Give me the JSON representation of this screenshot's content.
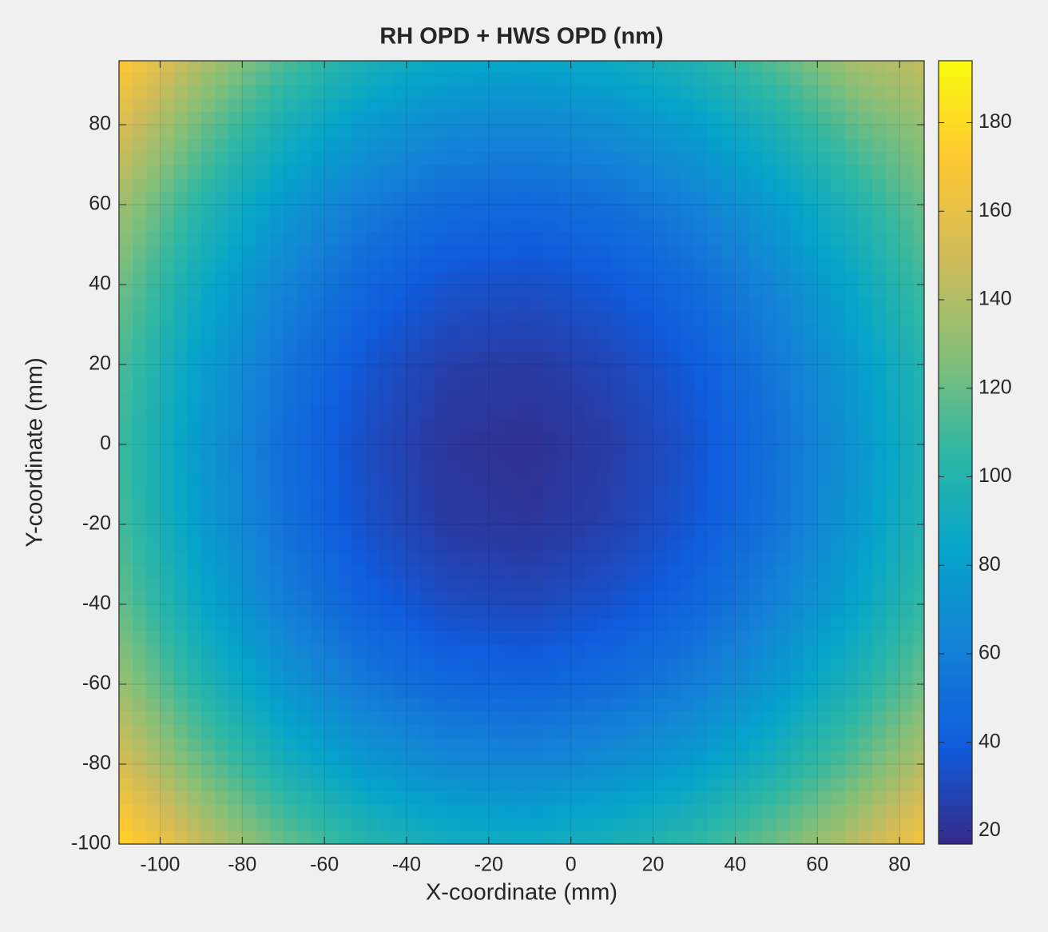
{
  "chart_data": {
    "type": "contour",
    "title": "RH OPD + HWS OPD (nm)",
    "x_label": "X-coordinate (mm)",
    "y_label": "Y-coordinate (mm)",
    "x": [
      -110,
      -90,
      -70,
      -50,
      -30,
      -10,
      10,
      30,
      50,
      70,
      90
    ],
    "y": [
      -100,
      -80,
      -60,
      -40,
      -20,
      0,
      20,
      40,
      60,
      80,
      100
    ],
    "z": [
      [
        180,
        146,
        120,
        102,
        92,
        90,
        95,
        105,
        122,
        144,
        173
      ],
      [
        154,
        120,
        94,
        76,
        66,
        64,
        69,
        79,
        96,
        118,
        147
      ],
      [
        134,
        100,
        74,
        56,
        46,
        44,
        49,
        59,
        76,
        98,
        127
      ],
      [
        120,
        86,
        60,
        42,
        32,
        30,
        35,
        45,
        62,
        84,
        113
      ],
      [
        112,
        78,
        52,
        34,
        24,
        22,
        27,
        37,
        54,
        76,
        105
      ],
      [
        110,
        76,
        50,
        32,
        22,
        20,
        25,
        35,
        52,
        74,
        103
      ],
      [
        114,
        80,
        54,
        36,
        26,
        24,
        29,
        39,
        56,
        78,
        107
      ],
      [
        123,
        89,
        63,
        45,
        35,
        33,
        38,
        48,
        65,
        87,
        116
      ],
      [
        136,
        102,
        76,
        58,
        48,
        46,
        51,
        61,
        78,
        100,
        125
      ],
      [
        155,
        121,
        95,
        77,
        67,
        65,
        70,
        80,
        97,
        119,
        135
      ],
      [
        178,
        144,
        118,
        100,
        90,
        88,
        93,
        103,
        120,
        142,
        150
      ]
    ],
    "xlim": [
      -110,
      86
    ],
    "ylim": [
      -100,
      96
    ],
    "xticks": [
      -100,
      -80,
      -60,
      -40,
      -20,
      0,
      20,
      40,
      60,
      80
    ],
    "yticks": [
      -100,
      -80,
      -60,
      -40,
      -20,
      0,
      20,
      40,
      60,
      80
    ],
    "clim": [
      17,
      194
    ],
    "cticks": [
      20,
      40,
      60,
      80,
      100,
      120,
      140,
      160,
      180
    ],
    "colormap": [
      "#352a87",
      "#0f5cdd",
      "#1481d6",
      "#06a4ca",
      "#2eb7a4",
      "#87bf77",
      "#d1bb59",
      "#fec832",
      "#f9fb0e"
    ],
    "grid": true
  }
}
